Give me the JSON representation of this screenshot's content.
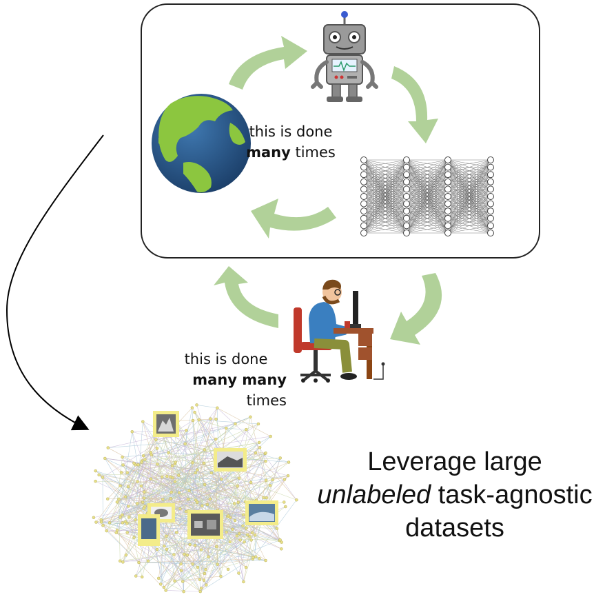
{
  "inner_loop": {
    "line1": "this is done",
    "bold": "many",
    "rest": " times"
  },
  "outer_loop": {
    "line1": "this is done",
    "bold": "many many",
    "rest": " times"
  },
  "leverage": {
    "line1": "Leverage large",
    "italic": "unlabeled",
    "line2_rest": " task-agnostic",
    "line3": "datasets"
  },
  "colors": {
    "cycle_arrow": "#a9cc8e",
    "ocean": "#2f5d8c",
    "land": "#8cc63f",
    "robot": "#8e8e8e",
    "thumb_frame": "#f3ec8a"
  }
}
